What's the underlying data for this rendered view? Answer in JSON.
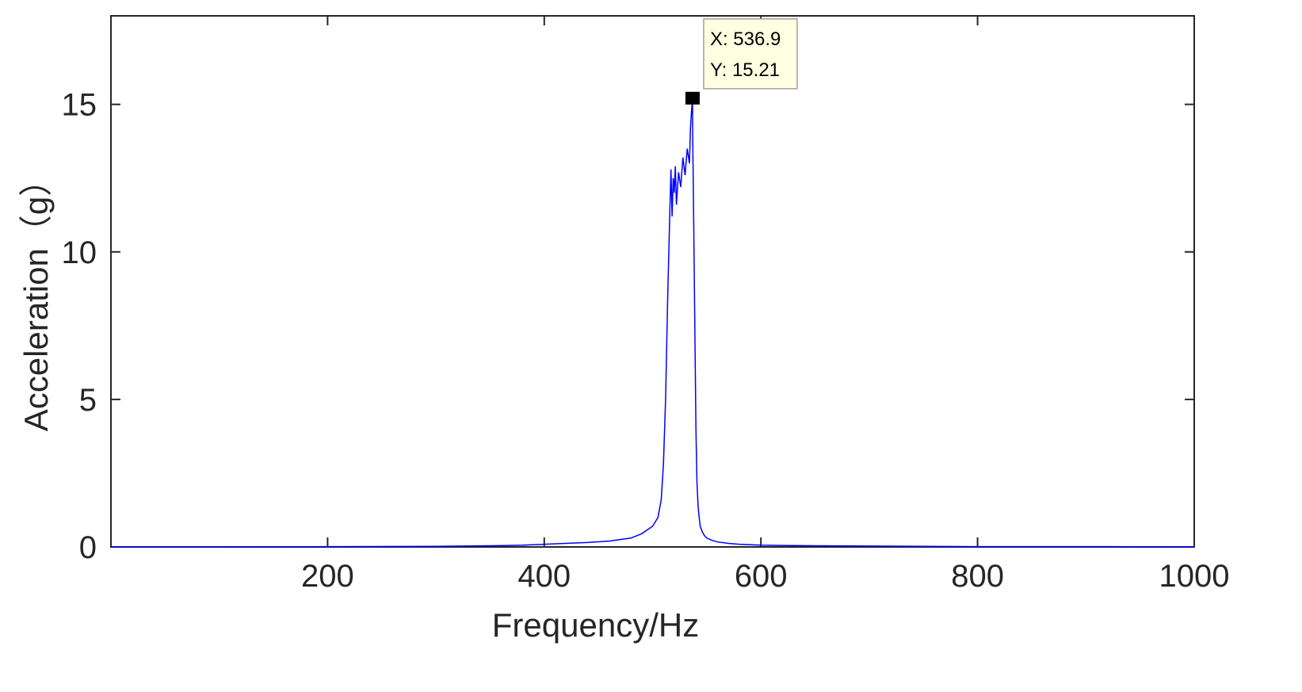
{
  "colors": {
    "series": "#0000ff",
    "axis": "#262626",
    "tooltip_bg": "#ffffe1",
    "tooltip_border": "#a0a0a0",
    "marker": "#000000"
  },
  "chart_data": {
    "type": "line",
    "xlabel": "Frequency/Hz",
    "ylabel": "Acceleration（g）",
    "xlim": [
      0,
      1000
    ],
    "ylim": [
      0,
      18
    ],
    "xticks": [
      200,
      400,
      600,
      800,
      1000
    ],
    "yticks": [
      0,
      5,
      10,
      15
    ],
    "grid": false,
    "legend": "none",
    "series": [
      {
        "x": [
          0,
          100,
          200,
          300,
          350,
          380,
          400,
          420,
          440,
          460,
          480,
          490,
          500,
          505,
          508,
          510,
          512,
          514,
          516,
          517,
          518,
          519,
          520,
          521,
          522,
          524,
          526,
          528,
          530,
          532,
          534,
          535,
          536,
          536.9,
          537,
          538,
          539,
          540,
          541,
          542,
          543,
          544,
          546,
          548,
          550,
          555,
          560,
          570,
          580,
          600,
          620,
          650,
          700,
          750,
          800,
          900,
          1000
        ],
        "y": [
          0.0,
          0.0,
          0.01,
          0.02,
          0.04,
          0.06,
          0.09,
          0.12,
          0.15,
          0.2,
          0.3,
          0.45,
          0.7,
          1.0,
          1.6,
          2.8,
          5.0,
          8.5,
          11.5,
          12.8,
          11.2,
          12.5,
          12.0,
          12.9,
          11.6,
          12.7,
          12.2,
          13.2,
          12.6,
          13.5,
          13.0,
          14.2,
          14.8,
          15.21,
          14.0,
          11.0,
          7.5,
          4.0,
          2.2,
          1.4,
          1.0,
          0.7,
          0.5,
          0.38,
          0.3,
          0.22,
          0.17,
          0.12,
          0.09,
          0.06,
          0.05,
          0.04,
          0.03,
          0.02,
          0.01,
          0.01,
          0.0
        ]
      }
    ],
    "annotations": [
      {
        "x": 536.9,
        "y": 15.21,
        "x_text": "X: 536.9",
        "y_text": "Y: 15.21"
      }
    ]
  }
}
